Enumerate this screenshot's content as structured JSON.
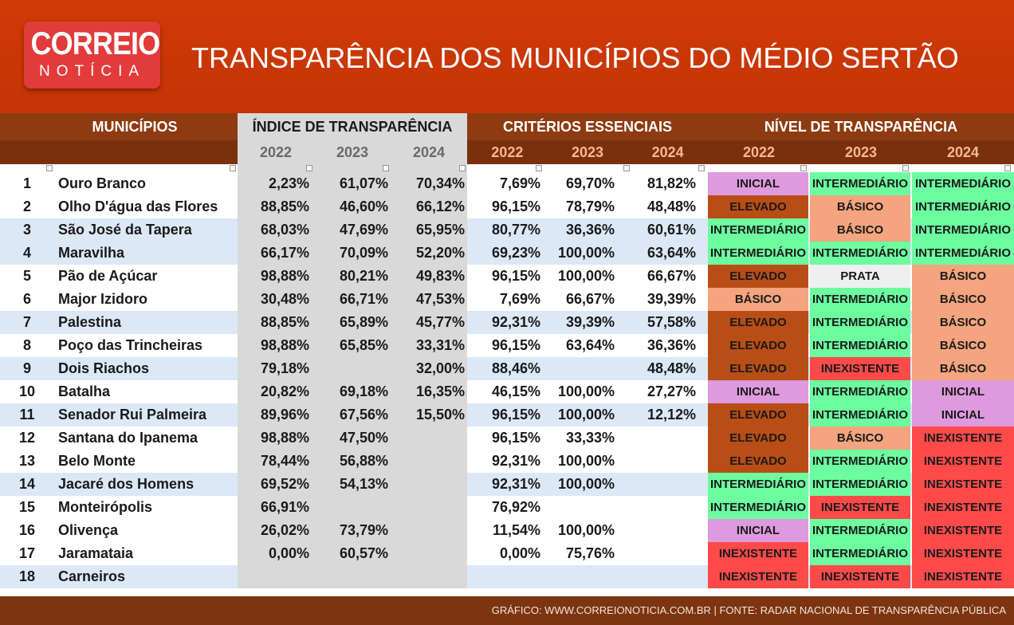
{
  "header": {
    "logo_top": "CORREIO",
    "logo_bottom": "NOTÍCIA",
    "title": "TRANSPARÊNCIA DOS MUNICÍPIOS DO MÉDIO SERTÃO"
  },
  "table": {
    "groups": [
      {
        "title": "MUNICÍPIOS"
      },
      {
        "title": "ÍNDICE DE TRANSPARÊNCIA",
        "years": [
          "2022",
          "2023",
          "2024"
        ]
      },
      {
        "title": "CRITÉRIOS ESSENCIAIS",
        "years": [
          "2022",
          "2023",
          "2024"
        ]
      },
      {
        "title": "NÍVEL DE TRANSPARÊNCIA",
        "years": [
          "2022",
          "2023",
          "2024"
        ]
      }
    ],
    "rows": [
      {
        "number": "1",
        "name": "Ouro Branco",
        "indice": [
          "2,23%",
          "61,07%",
          "70,34%"
        ],
        "criterios": [
          "7,69%",
          "69,70%",
          "81,82%"
        ],
        "nivel": [
          {
            "label": "INICIAL",
            "color": "#dd9ade"
          },
          {
            "label": "INTERMEDIÁRIO",
            "color": "#6dfca0"
          },
          {
            "label": "INTERMEDIÁRIO",
            "color": "#6dfca0"
          }
        ]
      },
      {
        "number": "2",
        "name": "Olho D'água das Flores",
        "indice": [
          "88,85%",
          "46,60%",
          "66,12%"
        ],
        "criterios": [
          "96,15%",
          "78,79%",
          "48,48%"
        ],
        "nivel": [
          {
            "label": "ELEVADO",
            "color": "#b94d16"
          },
          {
            "label": "BÁSICO",
            "color": "#f4a47e"
          },
          {
            "label": "INTERMEDIÁRIO",
            "color": "#6dfca0"
          }
        ]
      },
      {
        "number": "3",
        "name": "São José da Tapera",
        "indice": [
          "68,03%",
          "47,69%",
          "65,95%"
        ],
        "criterios": [
          "80,77%",
          "36,36%",
          "60,61%"
        ],
        "nivel": [
          {
            "label": "INTERMEDIÁRIO",
            "color": "#6dfca0"
          },
          {
            "label": "BÁSICO",
            "color": "#f4a47e"
          },
          {
            "label": "INTERMEDIÁRIO",
            "color": "#6dfca0"
          }
        ]
      },
      {
        "number": "4",
        "name": "Maravilha",
        "indice": [
          "66,17%",
          "70,09%",
          "52,20%"
        ],
        "criterios": [
          "69,23%",
          "100,00%",
          "63,64%"
        ],
        "nivel": [
          {
            "label": "INTERMEDIÁRIO",
            "color": "#6dfca0"
          },
          {
            "label": "INTERMEDIÁRIO",
            "color": "#6dfca0"
          },
          {
            "label": "INTERMEDIÁRIO",
            "color": "#6dfca0"
          }
        ]
      },
      {
        "number": "5",
        "name": "Pão de Açúcar",
        "indice": [
          "98,88%",
          "80,21%",
          "49,83%"
        ],
        "criterios": [
          "96,15%",
          "100,00%",
          "66,67%"
        ],
        "nivel": [
          {
            "label": "ELEVADO",
            "color": "#b94d16"
          },
          {
            "label": "PRATA",
            "color": "#efefef"
          },
          {
            "label": "BÁSICO",
            "color": "#f4a47e"
          }
        ]
      },
      {
        "number": "6",
        "name": "Major Izidoro",
        "indice": [
          "30,48%",
          "66,71%",
          "47,53%"
        ],
        "criterios": [
          "7,69%",
          "66,67%",
          "39,39%"
        ],
        "nivel": [
          {
            "label": "BÁSICO",
            "color": "#f4a47e"
          },
          {
            "label": "INTERMEDIÁRIO",
            "color": "#6dfca0"
          },
          {
            "label": "BÁSICO",
            "color": "#f4a47e"
          }
        ]
      },
      {
        "number": "7",
        "name": "Palestina",
        "indice": [
          "88,85%",
          "65,89%",
          "45,77%"
        ],
        "criterios": [
          "92,31%",
          "39,39%",
          "57,58%"
        ],
        "nivel": [
          {
            "label": "ELEVADO",
            "color": "#b94d16"
          },
          {
            "label": "INTERMEDIÁRIO",
            "color": "#6dfca0"
          },
          {
            "label": "BÁSICO",
            "color": "#f4a47e"
          }
        ]
      },
      {
        "number": "8",
        "name": "Poço das Trincheiras",
        "indice": [
          "98,88%",
          "65,85%",
          "33,31%"
        ],
        "criterios": [
          "96,15%",
          "63,64%",
          "36,36%"
        ],
        "nivel": [
          {
            "label": "ELEVADO",
            "color": "#b94d16"
          },
          {
            "label": "INTERMEDIÁRIO",
            "color": "#6dfca0"
          },
          {
            "label": "BÁSICO",
            "color": "#f4a47e"
          }
        ]
      },
      {
        "number": "9",
        "name": "Dois Riachos",
        "indice": [
          "79,18%",
          null,
          "32,00%"
        ],
        "criterios": [
          "88,46%",
          null,
          "48,48%"
        ],
        "nivel": [
          {
            "label": "ELEVADO",
            "color": "#b94d16"
          },
          {
            "label": "INEXISTENTE",
            "color": "#ff4a4a"
          },
          {
            "label": "BÁSICO",
            "color": "#f4a47e"
          }
        ]
      },
      {
        "number": "10",
        "name": "Batalha",
        "indice": [
          "20,82%",
          "69,18%",
          "16,35%"
        ],
        "criterios": [
          "46,15%",
          "100,00%",
          "27,27%"
        ],
        "nivel": [
          {
            "label": "INICIAL",
            "color": "#dd9ade"
          },
          {
            "label": "INTERMEDIÁRIO",
            "color": "#6dfca0"
          },
          {
            "label": "INICIAL",
            "color": "#dd9ade"
          }
        ]
      },
      {
        "number": "11",
        "name": "Senador Rui Palmeira",
        "indice": [
          "89,96%",
          "67,56%",
          "15,50%"
        ],
        "criterios": [
          "96,15%",
          "100,00%",
          "12,12%"
        ],
        "nivel": [
          {
            "label": "ELEVADO",
            "color": "#b94d16"
          },
          {
            "label": "INTERMEDIÁRIO",
            "color": "#6dfca0"
          },
          {
            "label": "INICIAL",
            "color": "#dd9ade"
          }
        ]
      },
      {
        "number": "12",
        "name": "Santana do Ipanema",
        "indice": [
          "98,88%",
          "47,50%",
          null
        ],
        "criterios": [
          "96,15%",
          "33,33%",
          null
        ],
        "nivel": [
          {
            "label": "ELEVADO",
            "color": "#b94d16"
          },
          {
            "label": "BÁSICO",
            "color": "#f4a47e"
          },
          {
            "label": "INEXISTENTE",
            "color": "#ff4a4a"
          }
        ]
      },
      {
        "number": "13",
        "name": "Belo Monte",
        "indice": [
          "78,44%",
          "56,88%",
          null
        ],
        "criterios": [
          "92,31%",
          "100,00%",
          null
        ],
        "nivel": [
          {
            "label": "ELEVADO",
            "color": "#b94d16"
          },
          {
            "label": "INTERMEDIÁRIO",
            "color": "#6dfca0"
          },
          {
            "label": "INEXISTENTE",
            "color": "#ff4a4a"
          }
        ]
      },
      {
        "number": "14",
        "name": "Jacaré dos Homens",
        "indice": [
          "69,52%",
          "54,13%",
          null
        ],
        "criterios": [
          "92,31%",
          "100,00%",
          null
        ],
        "nivel": [
          {
            "label": "INTERMEDIÁRIO",
            "color": "#6dfca0"
          },
          {
            "label": "INTERMEDIÁRIO",
            "color": "#6dfca0"
          },
          {
            "label": "INEXISTENTE",
            "color": "#ff4a4a"
          }
        ]
      },
      {
        "number": "15",
        "name": "Monteirópolis",
        "indice": [
          "66,91%",
          null,
          null
        ],
        "criterios": [
          "76,92%",
          null,
          null
        ],
        "nivel": [
          {
            "label": "INTERMEDIÁRIO",
            "color": "#6dfca0"
          },
          {
            "label": "INEXISTENTE",
            "color": "#ff4a4a"
          },
          {
            "label": "INEXISTENTE",
            "color": "#ff4a4a"
          }
        ]
      },
      {
        "number": "16",
        "name": "Olivença",
        "indice": [
          "26,02%",
          "73,79%",
          null
        ],
        "criterios": [
          "11,54%",
          "100,00%",
          null
        ],
        "nivel": [
          {
            "label": "INICIAL",
            "color": "#dd9ade"
          },
          {
            "label": "INTERMEDIÁRIO",
            "color": "#6dfca0"
          },
          {
            "label": "INEXISTENTE",
            "color": "#ff4a4a"
          }
        ]
      },
      {
        "number": "17",
        "name": "Jaramataia",
        "indice": [
          "0,00%",
          "60,57%",
          null
        ],
        "criterios": [
          "0,00%",
          "75,76%",
          null
        ],
        "nivel": [
          {
            "label": "INEXISTENTE",
            "color": "#ff4a4a"
          },
          {
            "label": "INTERMEDIÁRIO",
            "color": "#6dfca0"
          },
          {
            "label": "INEXISTENTE",
            "color": "#ff4a4a"
          }
        ]
      },
      {
        "number": "18",
        "name": "Carneiros",
        "indice": [
          null,
          null,
          null
        ],
        "criterios": [
          null,
          null,
          null
        ],
        "nivel": [
          {
            "label": "INEXISTENTE",
            "color": "#ff4a4a"
          },
          {
            "label": "INEXISTENTE",
            "color": "#ff4a4a"
          },
          {
            "label": "INEXISTENTE",
            "color": "#ff4a4a"
          }
        ]
      }
    ]
  },
  "footer": {
    "text": "GRÁFICO: WWW.CORREIONOTICIA.COM.BR | FONTE: RADAR NACIONAL DE TRANSPARÊNCIA PÚBLICA"
  }
}
